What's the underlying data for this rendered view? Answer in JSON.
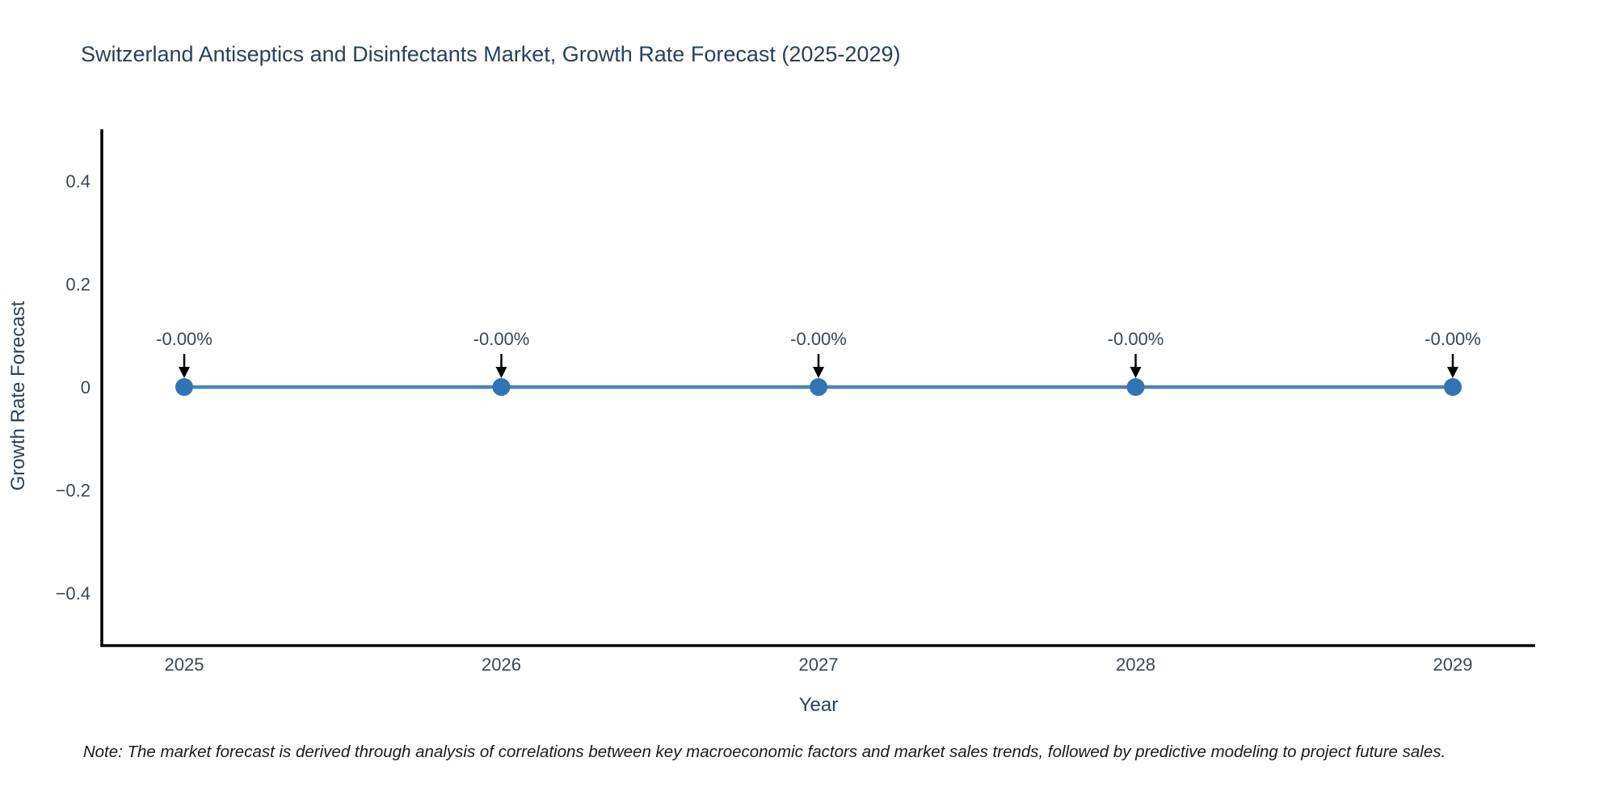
{
  "chart_data": {
    "type": "line",
    "title": "Switzerland Antiseptics and Disinfectants Market, Growth Rate Forecast (2025-2029)",
    "xlabel": "Year",
    "ylabel": "Growth Rate Forecast",
    "x": [
      "2025",
      "2026",
      "2027",
      "2028",
      "2029"
    ],
    "values": [
      0,
      0,
      0,
      0,
      0
    ],
    "point_labels": [
      "-0.00%",
      "-0.00%",
      "-0.00%",
      "-0.00%",
      "-0.00%"
    ],
    "ytick_values": [
      0.4,
      0.2,
      0,
      -0.2,
      -0.4
    ],
    "ytick_labels": [
      "0.4",
      "0.2",
      "0",
      "−0.2",
      "−0.4"
    ],
    "ylim": [
      -0.5,
      0.5
    ],
    "grid": false,
    "legend": "none",
    "note": "Note: The market forecast is derived through analysis of correlations between key macroeconomic factors and market sales trends, followed by predictive modeling to project future sales.",
    "colors": {
      "line": "#4d82b8",
      "marker": "#3273b5",
      "axis": "#000000",
      "title_text": "#2a3f5f",
      "tick_text": "#3b4754",
      "annotation_text": "#3b4754",
      "arrow": "#000000"
    }
  }
}
